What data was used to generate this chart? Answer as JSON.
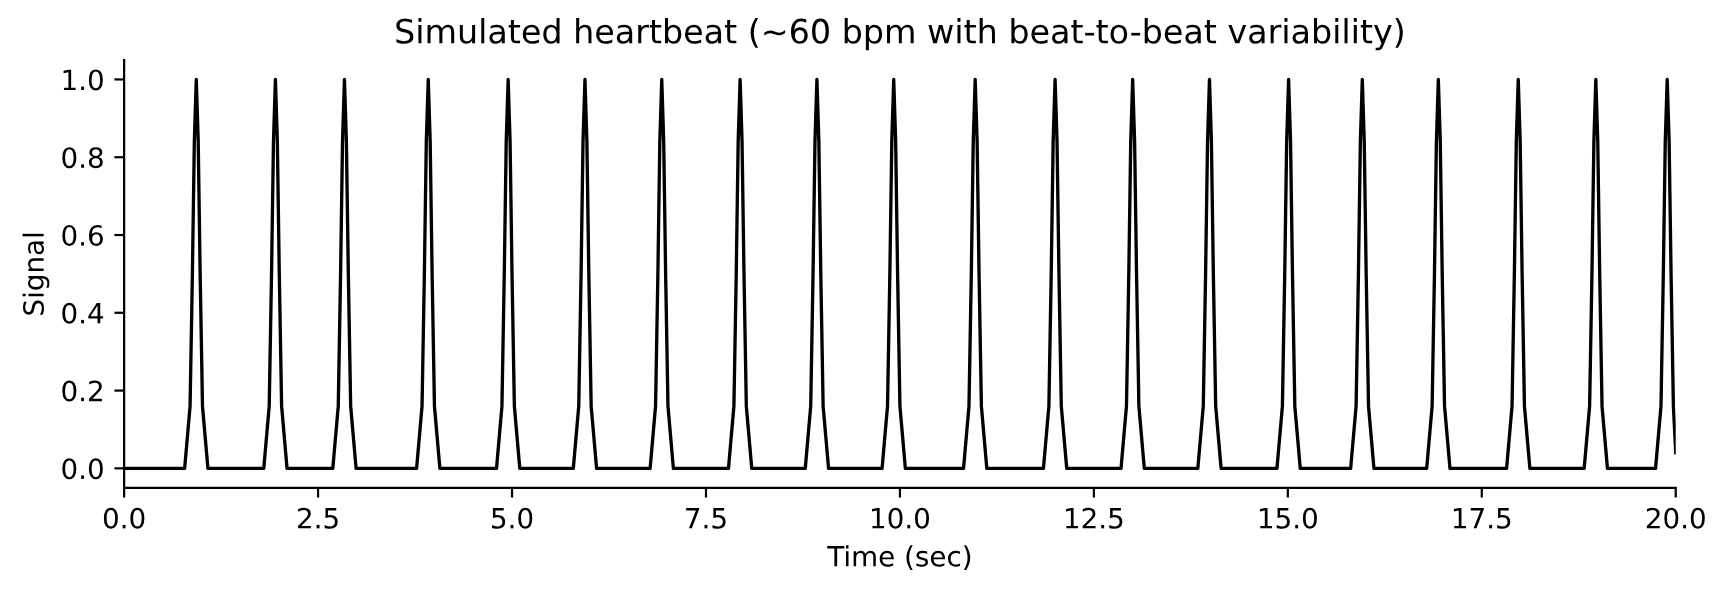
{
  "chart_data": {
    "type": "line",
    "title": "Simulated heartbeat (~60 bpm with beat-to-beat variability)",
    "xlabel": "Time (sec)",
    "ylabel": "Signal",
    "xlim": [
      0,
      20
    ],
    "xticks": [
      {
        "value": 0,
        "label": "0.0"
      },
      {
        "value": 2.5,
        "label": "2.5"
      },
      {
        "value": 5,
        "label": "5.0"
      },
      {
        "value": 7.5,
        "label": "7.5"
      },
      {
        "value": 10,
        "label": "10.0"
      },
      {
        "value": 12.5,
        "label": "12.5"
      },
      {
        "value": 15,
        "label": "15.0"
      },
      {
        "value": 17.5,
        "label": "17.5"
      },
      {
        "value": 20,
        "label": "20.0"
      }
    ],
    "ylim": [
      -0.05,
      1.05
    ],
    "yticks": [
      {
        "value": 0,
        "label": "0.0"
      },
      {
        "value": 0.2,
        "label": "0.2"
      },
      {
        "value": 0.4,
        "label": "0.4"
      },
      {
        "value": 0.6,
        "label": "0.6"
      },
      {
        "value": 0.8,
        "label": "0.8"
      },
      {
        "value": 1,
        "label": "1.0"
      }
    ],
    "grid": false,
    "legend": false,
    "marker": "none",
    "line_style": "solid",
    "series": [
      {
        "color": "#000000",
        "x": [
          0,
          0.78,
          0.85,
          0.88,
          0.905,
          0.93,
          0.955,
          0.98,
          1.01,
          1.08,
          1.8,
          1.87,
          1.9,
          1.925,
          1.95,
          1.975,
          2.0,
          2.03,
          2.1,
          2.69,
          2.76,
          2.79,
          2.815,
          2.84,
          2.865,
          2.89,
          2.92,
          2.99,
          3.77,
          3.84,
          3.87,
          3.895,
          3.92,
          3.945,
          3.97,
          4.0,
          4.07,
          4.8,
          4.87,
          4.9,
          4.925,
          4.95,
          4.975,
          5.0,
          5.03,
          5.1,
          5.79,
          5.86,
          5.89,
          5.915,
          5.94,
          5.965,
          5.99,
          6.02,
          6.09,
          6.78,
          6.85,
          6.88,
          6.905,
          6.93,
          6.955,
          6.98,
          7.01,
          7.08,
          7.79,
          7.86,
          7.89,
          7.915,
          7.94,
          7.965,
          7.99,
          8.02,
          8.09,
          8.78,
          8.85,
          8.88,
          8.905,
          8.93,
          8.955,
          8.98,
          9.01,
          9.08,
          9.77,
          9.84,
          9.87,
          9.895,
          9.92,
          9.945,
          9.97,
          10.0,
          10.07,
          10.82,
          10.89,
          10.92,
          10.945,
          10.97,
          10.995,
          11.02,
          11.05,
          11.12,
          11.85,
          11.92,
          11.95,
          11.975,
          12.0,
          12.025,
          12.05,
          12.08,
          12.15,
          12.85,
          12.92,
          12.95,
          12.975,
          13.0,
          13.025,
          13.05,
          13.08,
          13.15,
          13.84,
          13.91,
          13.94,
          13.965,
          13.99,
          14.015,
          14.04,
          14.07,
          14.14,
          14.86,
          14.93,
          14.96,
          14.985,
          15.01,
          15.035,
          15.06,
          15.09,
          15.16,
          15.81,
          15.88,
          15.91,
          15.935,
          15.96,
          15.985,
          16.01,
          16.04,
          16.11,
          16.79,
          16.86,
          16.89,
          16.915,
          16.94,
          16.965,
          16.99,
          17.02,
          17.09,
          17.82,
          17.89,
          17.92,
          17.945,
          17.97,
          17.995,
          18.02,
          18.05,
          18.12,
          18.82,
          18.89,
          18.92,
          18.945,
          18.97,
          18.995,
          19.02,
          19.05,
          19.12,
          19.74,
          19.81,
          19.84,
          19.865,
          19.89,
          19.915,
          19.94,
          19.97,
          20.0
        ],
        "values": [
          0,
          0,
          0.16,
          0.5,
          0.84,
          1,
          0.84,
          0.5,
          0.16,
          0,
          0,
          0.16,
          0.5,
          0.84,
          1,
          0.84,
          0.5,
          0.16,
          0,
          0,
          0.16,
          0.5,
          0.84,
          1,
          0.84,
          0.5,
          0.16,
          0,
          0,
          0.16,
          0.5,
          0.84,
          1,
          0.84,
          0.5,
          0.16,
          0,
          0,
          0.16,
          0.5,
          0.84,
          1,
          0.84,
          0.5,
          0.16,
          0,
          0,
          0.16,
          0.5,
          0.84,
          1,
          0.84,
          0.5,
          0.16,
          0,
          0,
          0.16,
          0.5,
          0.84,
          1,
          0.84,
          0.5,
          0.16,
          0,
          0,
          0.16,
          0.5,
          0.84,
          1,
          0.84,
          0.5,
          0.16,
          0,
          0,
          0.16,
          0.5,
          0.84,
          1,
          0.84,
          0.5,
          0.16,
          0,
          0,
          0.16,
          0.5,
          0.84,
          1,
          0.84,
          0.5,
          0.16,
          0,
          0,
          0.16,
          0.5,
          0.84,
          1,
          0.84,
          0.5,
          0.16,
          0,
          0,
          0.16,
          0.5,
          0.84,
          1,
          0.84,
          0.5,
          0.16,
          0,
          0,
          0.16,
          0.5,
          0.84,
          1,
          0.84,
          0.5,
          0.16,
          0,
          0,
          0.16,
          0.5,
          0.84,
          1,
          0.84,
          0.5,
          0.16,
          0,
          0,
          0.16,
          0.5,
          0.84,
          1,
          0.84,
          0.5,
          0.16,
          0,
          0,
          0.16,
          0.5,
          0.84,
          1,
          0.84,
          0.5,
          0.16,
          0,
          0,
          0.16,
          0.5,
          0.84,
          1,
          0.84,
          0.5,
          0.16,
          0,
          0,
          0.16,
          0.5,
          0.84,
          1,
          0.84,
          0.5,
          0.16,
          0,
          0,
          0.16,
          0.5,
          0.84,
          1,
          0.84,
          0.5,
          0.16,
          0,
          0,
          0.16,
          0.5,
          0.84,
          1,
          0.84,
          0.5,
          0.16,
          0.04
        ]
      }
    ]
  }
}
